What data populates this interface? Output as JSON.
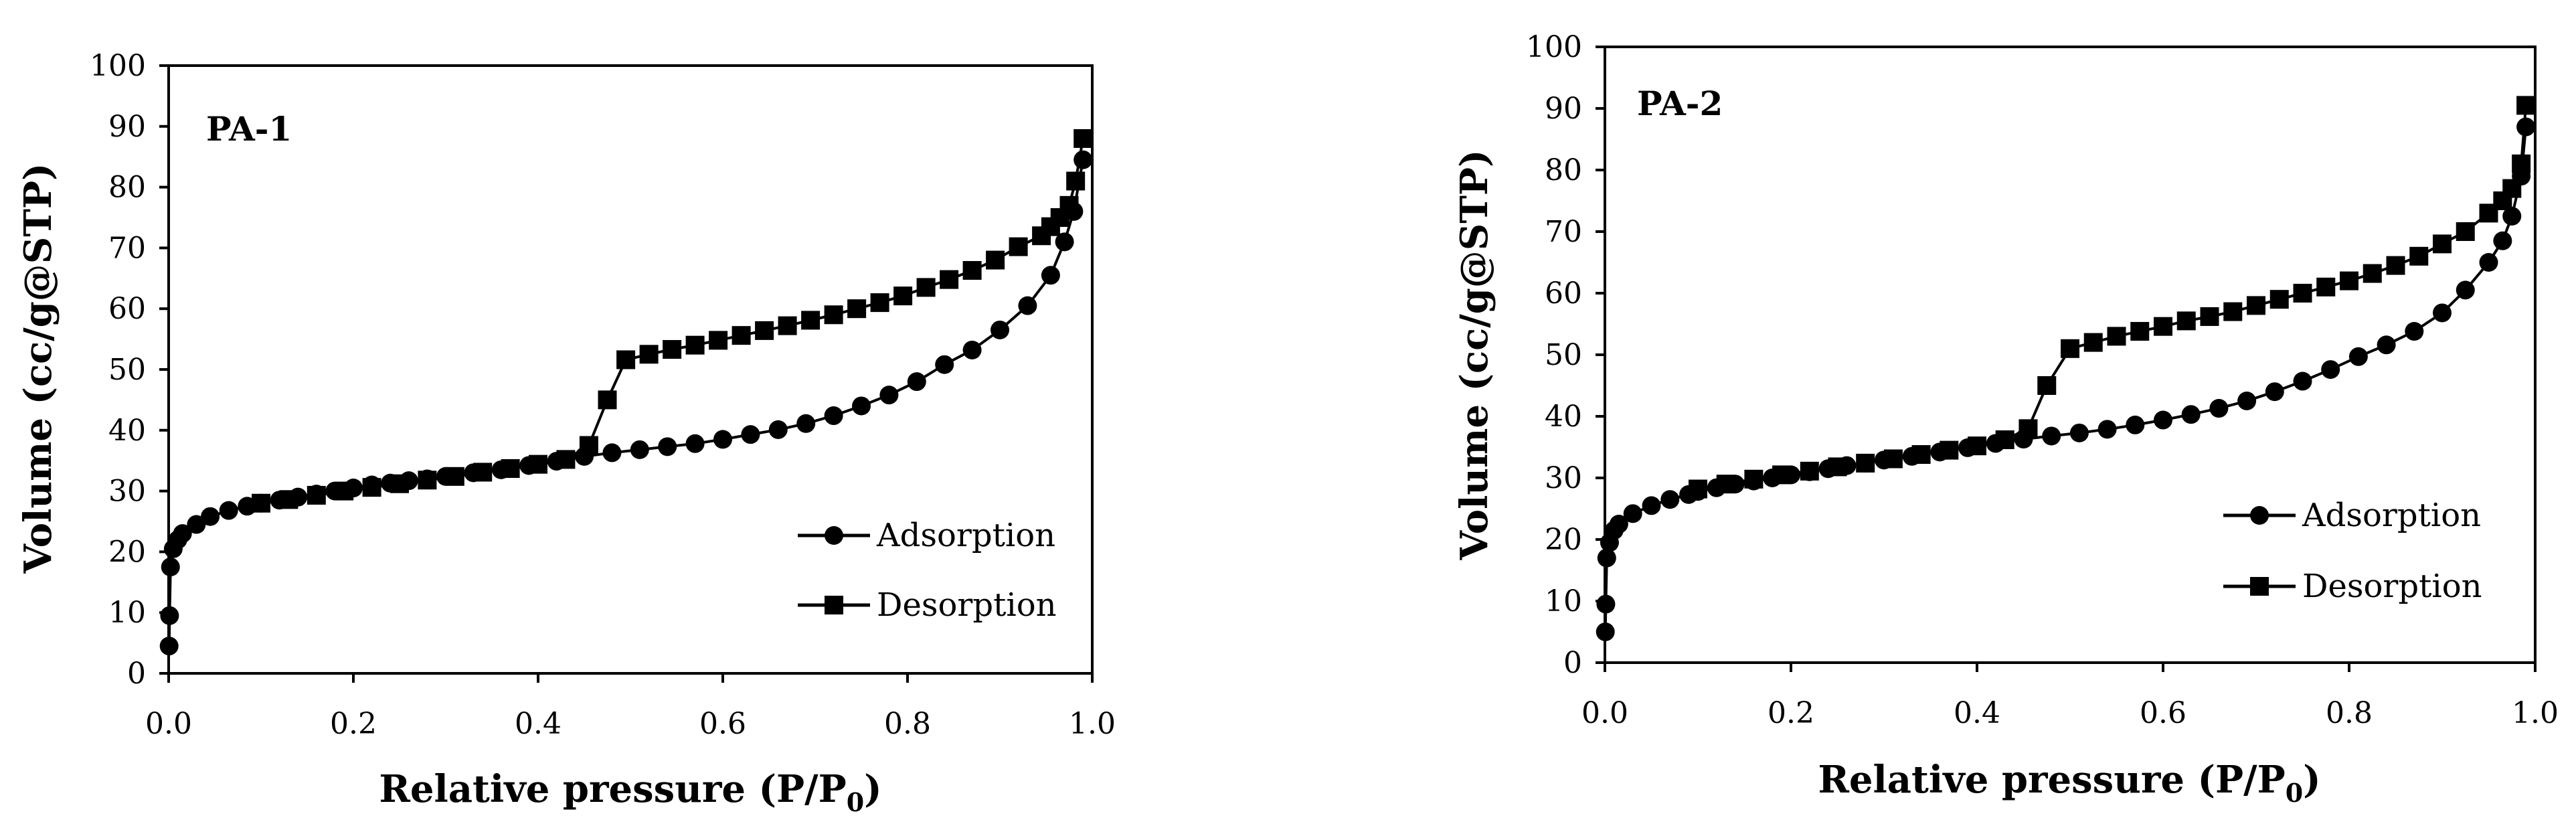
{
  "chart_data": [
    {
      "type": "line",
      "title": "PA-1",
      "xlabel": "Relative pressure (P/P",
      "xlabel_sub": "0",
      "xlabel_end": ")",
      "ylabel": "Volume (cc/g@STP)",
      "xlim": [
        0,
        1
      ],
      "ylim": [
        0,
        100
      ],
      "xticks": [
        "0.0",
        "0.2",
        "0.4",
        "0.6",
        "0.8",
        "1.0"
      ],
      "yticks": [
        "0",
        "10",
        "20",
        "30",
        "40",
        "50",
        "60",
        "70",
        "80",
        "90",
        "100"
      ],
      "grid": false,
      "legend_position": "bottom-right",
      "series": [
        {
          "name": "Adsorption",
          "marker": "circle",
          "x": [
            0.0005,
            0.001,
            0.002,
            0.005,
            0.01,
            0.015,
            0.03,
            0.045,
            0.065,
            0.085,
            0.1,
            0.12,
            0.14,
            0.16,
            0.18,
            0.2,
            0.22,
            0.24,
            0.26,
            0.28,
            0.3,
            0.33,
            0.36,
            0.39,
            0.42,
            0.45,
            0.48,
            0.51,
            0.54,
            0.57,
            0.6,
            0.63,
            0.66,
            0.69,
            0.72,
            0.75,
            0.78,
            0.81,
            0.84,
            0.87,
            0.9,
            0.93,
            0.955,
            0.97,
            0.98,
            0.99
          ],
          "y": [
            4.5,
            9.5,
            17.5,
            20.5,
            22,
            23,
            24.5,
            25.8,
            26.8,
            27.5,
            28,
            28.5,
            29,
            29.5,
            30,
            30.5,
            31,
            31.3,
            31.7,
            32,
            32.4,
            33,
            33.5,
            34.2,
            34.9,
            35.7,
            36.3,
            36.8,
            37.3,
            37.8,
            38.5,
            39.3,
            40.1,
            41.1,
            42.4,
            44,
            45.8,
            48,
            50.8,
            53.2,
            56.5,
            60.5,
            65.5,
            71,
            76,
            84.5
          ]
        },
        {
          "name": "Desorption",
          "marker": "square",
          "x": [
            0.99,
            0.982,
            0.975,
            0.965,
            0.955,
            0.945,
            0.92,
            0.895,
            0.87,
            0.845,
            0.82,
            0.795,
            0.77,
            0.745,
            0.72,
            0.695,
            0.67,
            0.645,
            0.62,
            0.595,
            0.57,
            0.545,
            0.52,
            0.495,
            0.475,
            0.455,
            0.43,
            0.4,
            0.37,
            0.34,
            0.31,
            0.28,
            0.25,
            0.22,
            0.19,
            0.16,
            0.13,
            0.1
          ],
          "y": [
            88,
            81,
            77,
            75,
            73.5,
            72,
            70.2,
            68,
            66.3,
            64.8,
            63.5,
            62.1,
            61,
            60,
            59,
            58.1,
            57.2,
            56.4,
            55.6,
            54.8,
            54,
            53.3,
            52.5,
            51.6,
            45,
            37.5,
            35.2,
            34.4,
            33.7,
            33.1,
            32.4,
            31.8,
            31.2,
            30.6,
            30,
            29.3,
            28.6,
            28
          ]
        }
      ]
    },
    {
      "type": "line",
      "title": "PA-2",
      "xlabel": "Relative pressure (P/P",
      "xlabel_sub": "0",
      "xlabel_end": ")",
      "ylabel": "Volume (cc/g@STP)",
      "xlim": [
        0,
        1
      ],
      "ylim": [
        0,
        100
      ],
      "xticks": [
        "0.0",
        "0.2",
        "0.4",
        "0.6",
        "0.8",
        "1.0"
      ],
      "yticks": [
        "0",
        "10",
        "20",
        "30",
        "40",
        "50",
        "60",
        "70",
        "80",
        "90",
        "100"
      ],
      "grid": false,
      "legend_position": "bottom-right",
      "series": [
        {
          "name": "Adsorption",
          "marker": "circle",
          "x": [
            0.0005,
            0.001,
            0.002,
            0.005,
            0.01,
            0.015,
            0.03,
            0.05,
            0.07,
            0.09,
            0.1,
            0.12,
            0.14,
            0.16,
            0.18,
            0.2,
            0.22,
            0.24,
            0.26,
            0.28,
            0.3,
            0.33,
            0.36,
            0.39,
            0.42,
            0.45,
            0.48,
            0.51,
            0.54,
            0.57,
            0.6,
            0.63,
            0.66,
            0.69,
            0.72,
            0.75,
            0.78,
            0.81,
            0.84,
            0.87,
            0.9,
            0.925,
            0.95,
            0.965,
            0.975,
            0.985,
            0.99
          ],
          "y": [
            5,
            9.5,
            17,
            19.5,
            21.5,
            22.5,
            24.2,
            25.5,
            26.5,
            27.3,
            27.8,
            28.4,
            29,
            29.5,
            30,
            30.5,
            31,
            31.5,
            32,
            32.4,
            32.9,
            33.5,
            34.2,
            34.9,
            35.6,
            36.3,
            36.8,
            37.3,
            37.9,
            38.6,
            39.4,
            40.3,
            41.3,
            42.5,
            44,
            45.7,
            47.6,
            49.7,
            51.6,
            53.8,
            56.8,
            60.5,
            65,
            68.5,
            72.5,
            79,
            87
          ]
        },
        {
          "name": "Desorption",
          "marker": "square",
          "x": [
            0.99,
            0.985,
            0.975,
            0.965,
            0.95,
            0.925,
            0.9,
            0.875,
            0.85,
            0.825,
            0.8,
            0.775,
            0.75,
            0.725,
            0.7,
            0.675,
            0.65,
            0.625,
            0.6,
            0.575,
            0.55,
            0.525,
            0.5,
            0.475,
            0.455,
            0.43,
            0.4,
            0.37,
            0.34,
            0.31,
            0.28,
            0.25,
            0.22,
            0.19,
            0.16,
            0.13,
            0.1
          ],
          "y": [
            90.5,
            81,
            77,
            75,
            73,
            70,
            68,
            66,
            64.5,
            63.2,
            62,
            61,
            60,
            59,
            58,
            57,
            56.2,
            55.5,
            54.6,
            53.8,
            53,
            52,
            51,
            45,
            38,
            36.2,
            35.2,
            34.5,
            33.8,
            33.1,
            32.4,
            31.8,
            31.1,
            30.5,
            29.8,
            29,
            28.2
          ]
        }
      ]
    }
  ]
}
